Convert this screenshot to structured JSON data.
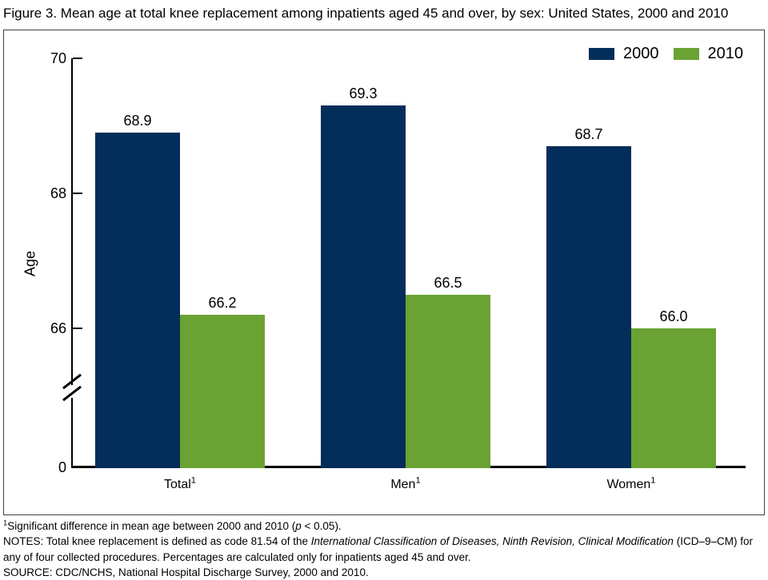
{
  "title": "Figure 3. Mean age at total knee replacement among inpatients aged 45 and over, by sex: United States, 2000 and 2010",
  "chart_data": {
    "type": "bar",
    "categories": [
      "Total",
      "Men",
      "Women"
    ],
    "category_footnote_marker": "1",
    "series": [
      {
        "name": "2000",
        "color": "#032d5a",
        "values": [
          68.9,
          69.3,
          68.7
        ]
      },
      {
        "name": "2010",
        "color": "#6aa233",
        "values": [
          66.2,
          66.5,
          66.0
        ]
      }
    ],
    "title": "Figure 3. Mean age at total knee replacement among inpatients aged 45 and over, by sex: United States, 2000 and 2010",
    "xlabel": "",
    "ylabel": "Age",
    "yticks": [
      70,
      68,
      66
    ],
    "origin_label": "0",
    "axis_break": true,
    "ylim_display": [
      66,
      70
    ],
    "grid": false,
    "legend_position": "top-right",
    "value_label_format": "one-decimal"
  },
  "colors": {
    "bar_2000": "#032d5a",
    "bar_2010": "#6aa233",
    "axis": "#000000",
    "frame_border": "#3f3f3f"
  },
  "notes": {
    "footnote_sup": "1",
    "footnote_parts": [
      "Significant difference in mean age between 2000 and 2010 (",
      "p",
      " < 0.05)."
    ],
    "notes_parts": [
      "NOTES: Total knee replacement is defined as code 81.54 of the ",
      "International Classification of Diseases, Ninth Revision, Clinical Modification",
      " (ICD–9–CM) for any of four collected procedures. Percentages are calculated only for inpatients aged 45 and over."
    ],
    "source": "SOURCE: CDC/NCHS, National Hospital Discharge Survey, 2000 and 2010."
  }
}
